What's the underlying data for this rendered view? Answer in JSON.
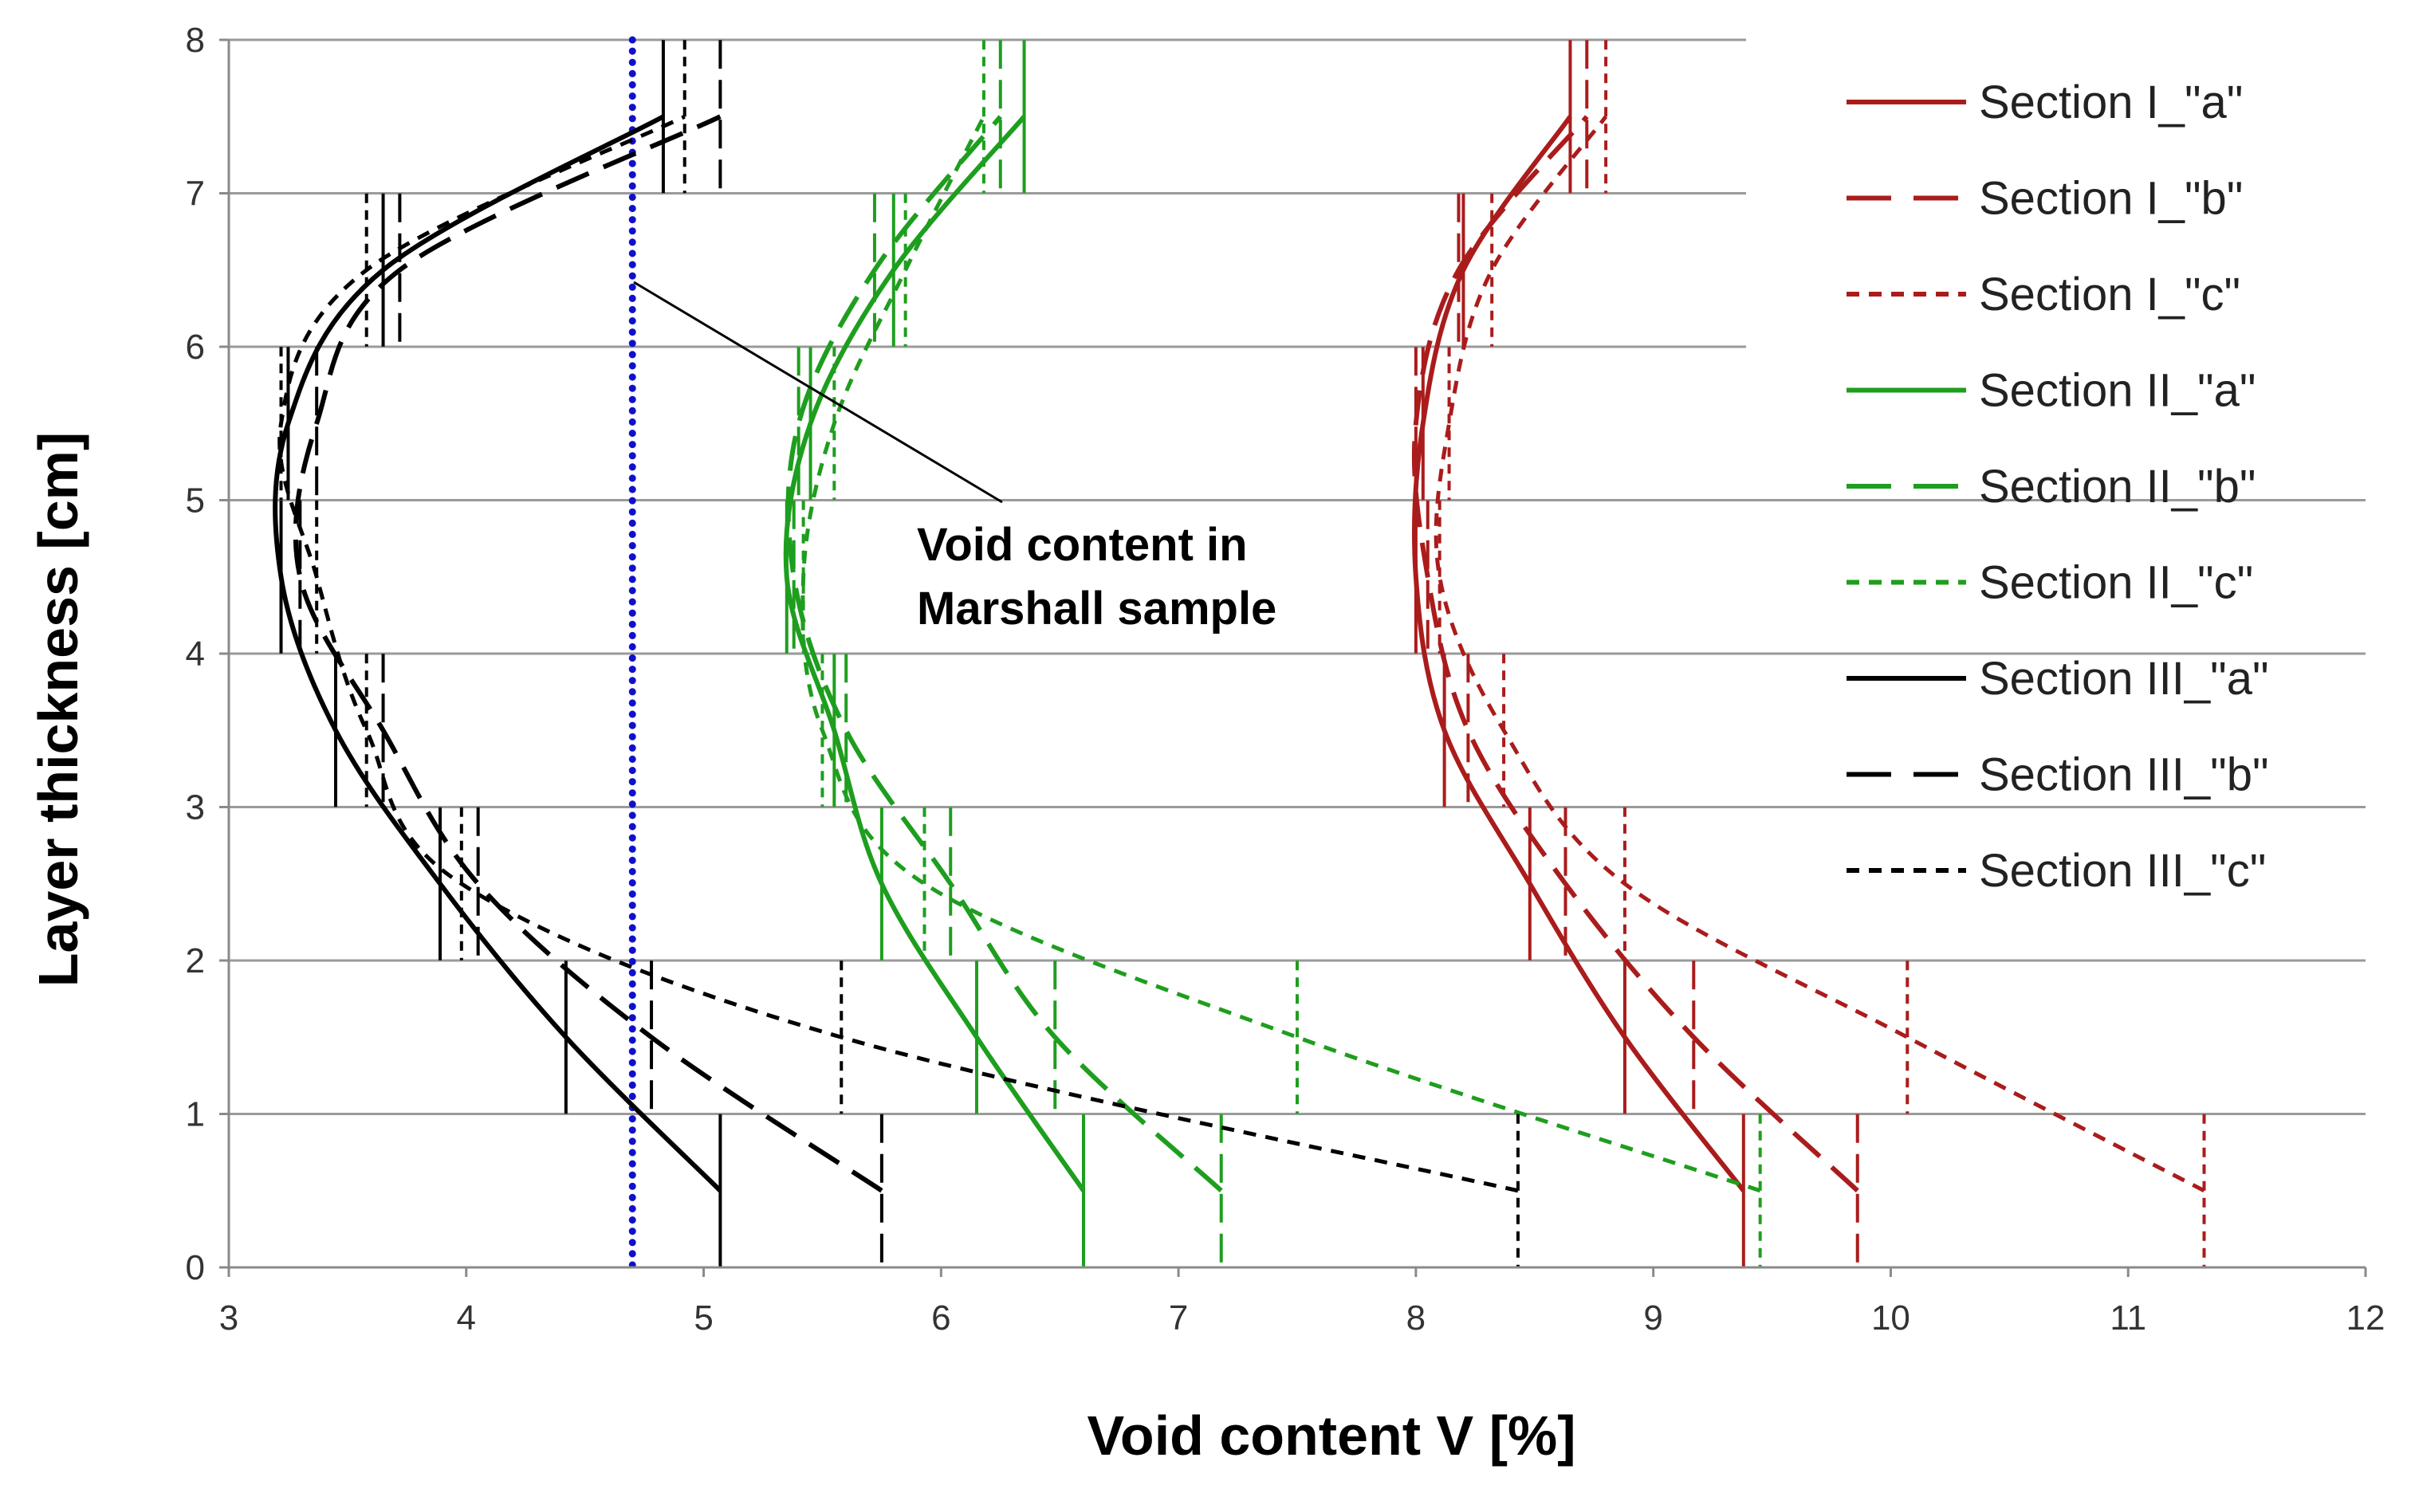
{
  "chart_data": {
    "type": "line",
    "title": "",
    "xlabel": "Void content V [%]",
    "ylabel": "Layer thickness [cm]",
    "xlim": [
      3,
      12
    ],
    "ylim": [
      0,
      8
    ],
    "xticks": [
      "3",
      "4",
      "5",
      "6",
      "7",
      "8",
      "9",
      "10",
      "11",
      "12"
    ],
    "yticks": [
      "0",
      "1",
      "2",
      "3",
      "4",
      "5",
      "6",
      "7",
      "8"
    ],
    "grid": "horizontal",
    "legend_position": "right",
    "reference_line": {
      "name": "Void content in Marshall sample",
      "x": 4.7,
      "color": "#1010cc",
      "style": "dotted"
    },
    "annotation": {
      "line1": "Void content in",
      "line2": "Marshall sample"
    },
    "series": [
      {
        "name": "Section I_\"a\"",
        "color": "#aa1c1c",
        "dash": "solid",
        "x": [
          9.38,
          8.88,
          8.48,
          8.12,
          8.0,
          8.03,
          8.2,
          8.65
        ],
        "y": [
          0.5,
          1.5,
          2.5,
          3.5,
          4.5,
          5.5,
          6.5,
          7.5
        ],
        "err": [
          0.0,
          0.0,
          0.0,
          0.0,
          0.0,
          0.0,
          0.0,
          0.0
        ]
      },
      {
        "name": "Section I_\"b\"",
        "color": "#aa1c1c",
        "dash": "long",
        "x": [
          9.86,
          9.17,
          8.63,
          8.22,
          8.05,
          8.0,
          8.18,
          8.72
        ],
        "y": [
          0.5,
          1.5,
          2.5,
          3.5,
          4.5,
          5.5,
          6.5,
          7.5
        ],
        "err": [
          0.0,
          0.0,
          0.0,
          0.0,
          0.0,
          0.0,
          0.0,
          0.0
        ]
      },
      {
        "name": "Section I_\"c\"",
        "color": "#aa1c1c",
        "dash": "short",
        "x": [
          11.32,
          10.07,
          8.88,
          8.37,
          8.1,
          8.14,
          8.32,
          8.8
        ],
        "y": [
          0.5,
          1.5,
          2.5,
          3.5,
          4.5,
          5.5,
          6.5,
          7.5
        ],
        "err": [
          0.0,
          0.0,
          0.0,
          0.0,
          0.0,
          0.0,
          0.0,
          0.0
        ]
      },
      {
        "name": "Section II_\"a\"",
        "color": "#1e9e1e",
        "dash": "solid",
        "x": [
          6.6,
          6.15,
          5.75,
          5.55,
          5.35,
          5.45,
          5.8,
          6.35
        ],
        "y": [
          0.5,
          1.5,
          2.5,
          3.5,
          4.5,
          5.5,
          6.5,
          7.5
        ],
        "err": [
          0.0,
          0.0,
          0.0,
          0.0,
          0.0,
          0.0,
          0.0,
          0.0
        ]
      },
      {
        "name": "Section II_\"b\"",
        "color": "#1e9e1e",
        "dash": "long",
        "x": [
          7.18,
          6.48,
          6.04,
          5.6,
          5.38,
          5.4,
          5.72,
          6.25
        ],
        "y": [
          0.5,
          1.5,
          2.5,
          3.5,
          4.5,
          5.5,
          6.5,
          7.5
        ],
        "err": [
          0.0,
          0.0,
          0.0,
          0.0,
          0.0,
          0.0,
          0.0,
          0.0
        ]
      },
      {
        "name": "Section II_\"c\"",
        "color": "#1e9e1e",
        "dash": "short",
        "x": [
          9.45,
          7.5,
          5.93,
          5.5,
          5.42,
          5.55,
          5.85,
          6.18
        ],
        "y": [
          0.5,
          1.5,
          2.5,
          3.5,
          4.5,
          5.5,
          6.5,
          7.5
        ],
        "err": [
          0.0,
          0.0,
          0.0,
          0.0,
          0.0,
          0.0,
          0.0,
          0.0
        ]
      },
      {
        "name": "Section III_\"a\"",
        "color": "#000000",
        "dash": "solid",
        "x": [
          5.07,
          4.42,
          3.89,
          3.45,
          3.22,
          3.25,
          3.65,
          4.83
        ],
        "y": [
          0.5,
          1.5,
          2.5,
          3.5,
          4.5,
          5.5,
          6.5,
          7.5
        ],
        "err": [
          0.0,
          0.0,
          0.0,
          0.0,
          0.0,
          0.0,
          0.0,
          0.0
        ]
      },
      {
        "name": "Section III_\"b\"",
        "color": "#000000",
        "dash": "long",
        "x": [
          5.75,
          4.78,
          4.05,
          3.65,
          3.3,
          3.37,
          3.72,
          5.07
        ],
        "y": [
          0.5,
          1.5,
          2.5,
          3.5,
          4.5,
          5.5,
          6.5,
          7.5
        ],
        "err": [
          0.0,
          0.0,
          0.0,
          0.0,
          0.0,
          0.0,
          0.0,
          0.0
        ]
      },
      {
        "name": "Section III_\"c\"",
        "color": "#000000",
        "dash": "short",
        "x": [
          8.43,
          5.58,
          3.98,
          3.58,
          3.37,
          3.22,
          3.58,
          4.92
        ],
        "y": [
          0.5,
          1.5,
          2.5,
          3.5,
          4.5,
          5.5,
          6.5,
          7.5
        ],
        "err": [
          0.0,
          0.0,
          0.0,
          0.0,
          0.0,
          0.0,
          0.0,
          0.0
        ]
      }
    ]
  }
}
